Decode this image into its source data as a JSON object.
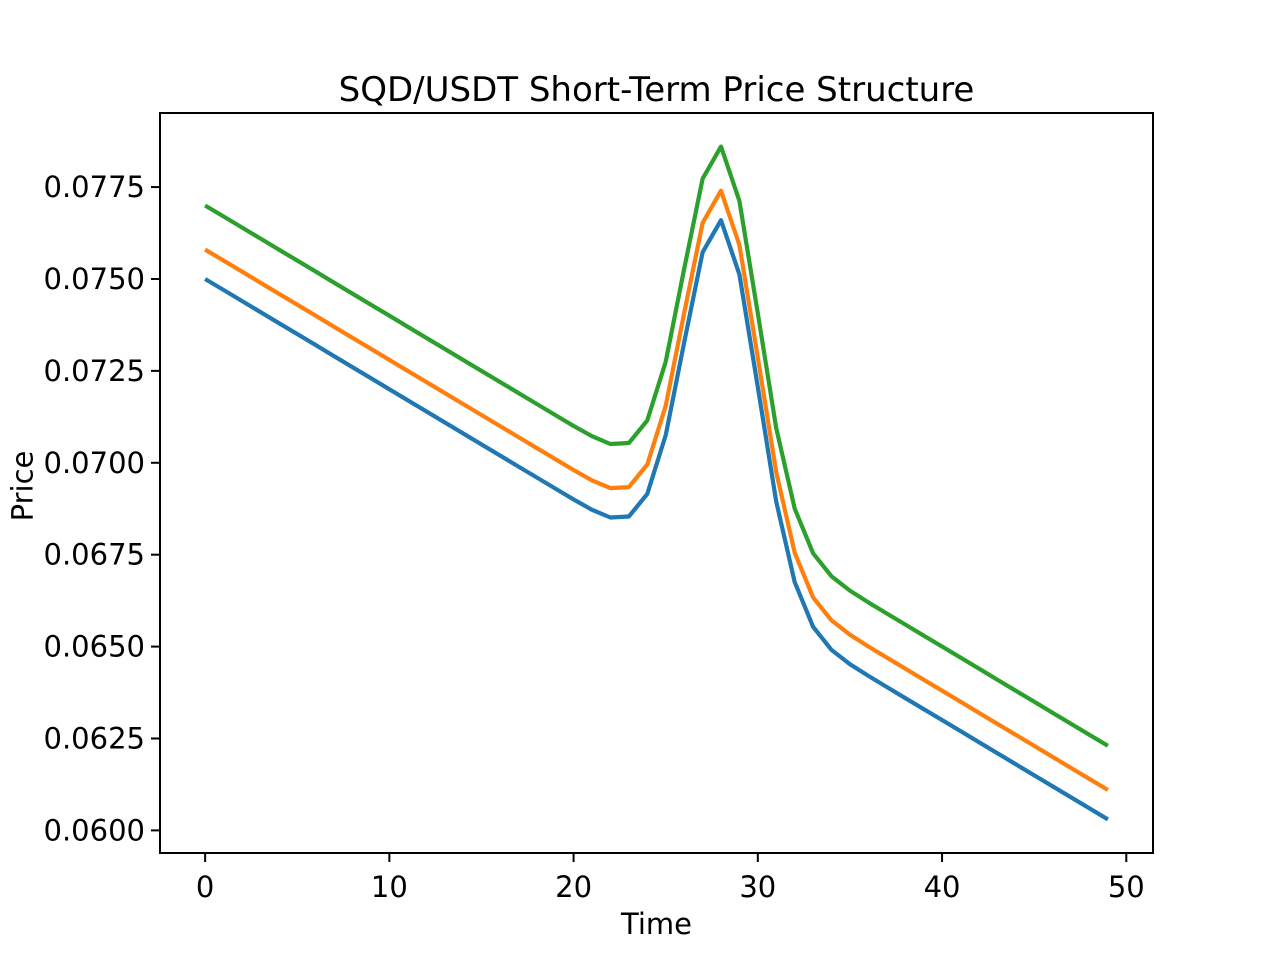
{
  "figure": {
    "background": "#ffffff",
    "text_color": "#000000"
  },
  "chart_data": {
    "type": "line",
    "title": "SQD/USDT Short-Term Price Structure",
    "xlabel": "Time",
    "ylabel": "Price",
    "grid": false,
    "legend_position": "none",
    "axis_color": "#000000",
    "text_color": "#000000",
    "xlim": [
      -2.45,
      51.45
    ],
    "ylim": [
      0.059385,
      0.079515
    ],
    "xticks": {
      "values": [
        0,
        10,
        20,
        30,
        40,
        50
      ],
      "labels": [
        "0",
        "10",
        "20",
        "30",
        "40",
        "50"
      ]
    },
    "yticks": {
      "values": [
        0.06,
        0.0625,
        0.065,
        0.0675,
        0.07,
        0.0725,
        0.075,
        0.0775
      ],
      "labels": [
        "0.0600",
        "0.0625",
        "0.0650",
        "0.0675",
        "0.0700",
        "0.0725",
        "0.0750",
        "0.0775"
      ]
    },
    "x": [
      0,
      1,
      2,
      3,
      4,
      5,
      6,
      7,
      8,
      9,
      10,
      11,
      12,
      13,
      14,
      15,
      16,
      17,
      18,
      19,
      20,
      21,
      22,
      23,
      24,
      25,
      26,
      27,
      28,
      29,
      30,
      31,
      32,
      33,
      34,
      35,
      36,
      37,
      38,
      39,
      40,
      41,
      42,
      43,
      44,
      45,
      46,
      47,
      48,
      49
    ],
    "series": [
      {
        "name": "blue",
        "color": "#1f77b4",
        "values": [
          0.075,
          0.0747,
          0.0744,
          0.0741,
          0.0738,
          0.0735,
          0.0732,
          0.0729,
          0.0726,
          0.0723,
          0.072,
          0.0717,
          0.0714,
          0.0711,
          0.0708,
          0.0705,
          0.0702,
          0.0699,
          0.0696,
          0.0693,
          0.069003,
          0.068722,
          0.068511,
          0.068539,
          0.069153,
          0.070747,
          0.073265,
          0.075725,
          0.0766,
          0.075125,
          0.072065,
          0.068947,
          0.066753,
          0.065539,
          0.064911,
          0.064522,
          0.064203,
          0.0639,
          0.0636,
          0.0633,
          0.063,
          0.0627,
          0.0624,
          0.0621,
          0.0618,
          0.0615,
          0.0612,
          0.0609,
          0.0606,
          0.0603
        ]
      },
      {
        "name": "orange",
        "color": "#ff7f0e",
        "values": [
          0.0758,
          0.0755,
          0.0752,
          0.0749,
          0.0746,
          0.0743,
          0.074,
          0.0737,
          0.0734,
          0.0731,
          0.0728,
          0.0725,
          0.0722,
          0.0719,
          0.0716,
          0.0713,
          0.071,
          0.0707,
          0.0704,
          0.0701,
          0.069803,
          0.069522,
          0.069311,
          0.069339,
          0.069953,
          0.071547,
          0.074065,
          0.076525,
          0.0774,
          0.075925,
          0.072865,
          0.069747,
          0.067553,
          0.066339,
          0.065711,
          0.065322,
          0.065003,
          0.0647,
          0.0644,
          0.0641,
          0.0638,
          0.0635,
          0.0632,
          0.0629,
          0.0626,
          0.0623,
          0.062,
          0.0617,
          0.0614,
          0.0611
        ]
      },
      {
        "name": "green",
        "color": "#2ca02c",
        "values": [
          0.077,
          0.0767,
          0.0764,
          0.0761,
          0.0758,
          0.0755,
          0.0752,
          0.0749,
          0.0746,
          0.0743,
          0.074,
          0.0737,
          0.0734,
          0.0731,
          0.0728,
          0.0725,
          0.0722,
          0.0719,
          0.0716,
          0.0713,
          0.071003,
          0.070722,
          0.070511,
          0.070539,
          0.071153,
          0.072747,
          0.075265,
          0.077725,
          0.0786,
          0.077125,
          0.074065,
          0.070947,
          0.068753,
          0.067539,
          0.066911,
          0.066522,
          0.066203,
          0.0659,
          0.0656,
          0.0653,
          0.065,
          0.0647,
          0.0644,
          0.0641,
          0.0638,
          0.0635,
          0.0632,
          0.0629,
          0.0626,
          0.0623
        ]
      }
    ]
  }
}
